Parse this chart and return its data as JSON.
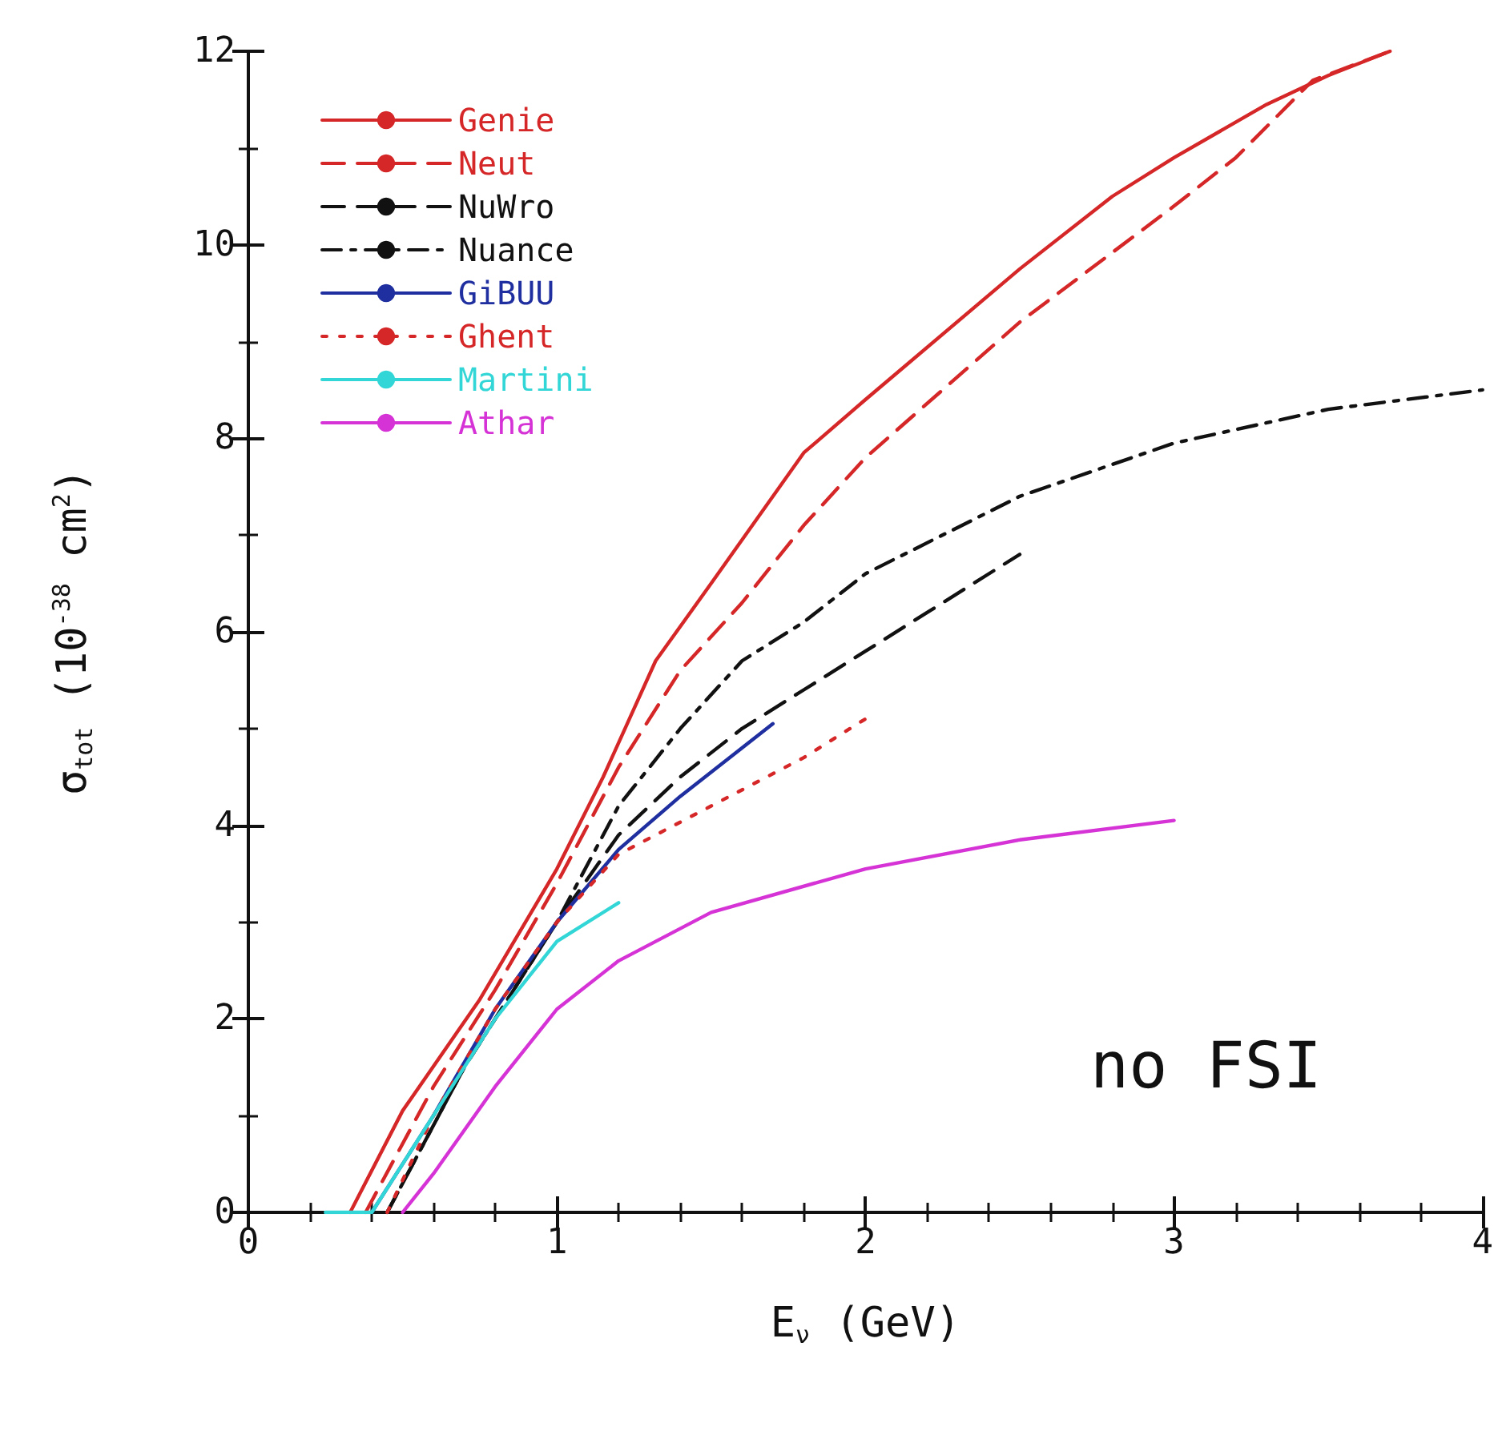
{
  "chart_data": {
    "type": "line",
    "xlabel": "E$_{ν}$ (GeV)",
    "ylabel": "σ$_{tot}$ (10$^{-38}$ cm$^{2}$)",
    "xlim": [
      0,
      4
    ],
    "xticks": [
      0,
      1,
      2,
      3,
      4
    ],
    "ylim": [
      0,
      12
    ],
    "yticks": [
      0,
      2,
      4,
      6,
      8,
      10,
      12
    ],
    "grid": false,
    "legend": "top left",
    "marker": "none",
    "annotations": [
      "no FSI"
    ],
    "series": [
      {
        "name": "Genie",
        "color": "#d62728",
        "line_style": "solid",
        "x": [
          0.33,
          0.5,
          0.75,
          1,
          1.15,
          1.32,
          1.5,
          1.8,
          2,
          2.5,
          2.8,
          3,
          3.3,
          3.5,
          3.7
        ],
        "values": [
          0,
          1.05,
          2.2,
          3.55,
          4.5,
          5.7,
          6.5,
          7.85,
          8.4,
          9.75,
          10.5,
          10.9,
          11.45,
          11.75,
          12
        ]
      },
      {
        "name": "Neut",
        "color": "#d62728",
        "line_style": "dashed",
        "x": [
          0.38,
          0.6,
          0.8,
          1,
          1.2,
          1.4,
          1.6,
          1.8,
          2,
          2.5,
          3,
          3.2,
          3.45,
          3.7
        ],
        "values": [
          0,
          1.3,
          2.3,
          3.4,
          4.6,
          5.6,
          6.3,
          7.1,
          7.8,
          9.2,
          10.4,
          10.9,
          11.7,
          12
        ]
      },
      {
        "name": "NuWro",
        "color": "#111111",
        "line_style": "dashed",
        "x": [
          0.45,
          0.7,
          1,
          1.2,
          1.4,
          1.6,
          1.8,
          2,
          2.25,
          2.5
        ],
        "values": [
          0,
          1.5,
          3,
          3.9,
          4.5,
          5,
          5.4,
          5.8,
          6.3,
          6.8
        ]
      },
      {
        "name": "Nuance",
        "color": "#111111",
        "line_style": "dashdot",
        "x": [
          0.45,
          0.7,
          1,
          1.2,
          1.4,
          1.6,
          1.8,
          2,
          2.5,
          3,
          3.5,
          4
        ],
        "values": [
          0,
          1.5,
          3,
          4.2,
          5,
          5.7,
          6.1,
          6.6,
          7.4,
          7.95,
          8.3,
          8.5
        ]
      },
      {
        "name": "GiBUU",
        "color": "#1f2f9f",
        "line_style": "solid",
        "x": [
          0.4,
          0.6,
          0.8,
          1,
          1.2,
          1.4,
          1.6,
          1.7
        ],
        "values": [
          0,
          1,
          2.1,
          3,
          3.75,
          4.3,
          4.8,
          5.05
        ]
      },
      {
        "name": "Ghent",
        "color": "#d62728",
        "line_style": "dotted",
        "x": [
          0.45,
          0.6,
          0.8,
          1,
          1.2,
          1.5,
          1.8,
          2
        ],
        "values": [
          0,
          1,
          2.1,
          3,
          3.7,
          4.2,
          4.7,
          5.1
        ]
      },
      {
        "name": "Martini",
        "color": "#33d6d6",
        "line_style": "solid",
        "x": [
          0.25,
          0.4,
          0.6,
          0.8,
          1,
          1.2
        ],
        "values": [
          0,
          0,
          1,
          2,
          2.8,
          3.2
        ]
      },
      {
        "name": "Athar",
        "color": "#d633d6",
        "line_style": "solid",
        "x": [
          0.5,
          0.6,
          0.8,
          1,
          1.2,
          1.5,
          2,
          2.5,
          3
        ],
        "values": [
          0,
          0.4,
          1.3,
          2.1,
          2.6,
          3.1,
          3.55,
          3.85,
          4.05
        ]
      }
    ]
  }
}
